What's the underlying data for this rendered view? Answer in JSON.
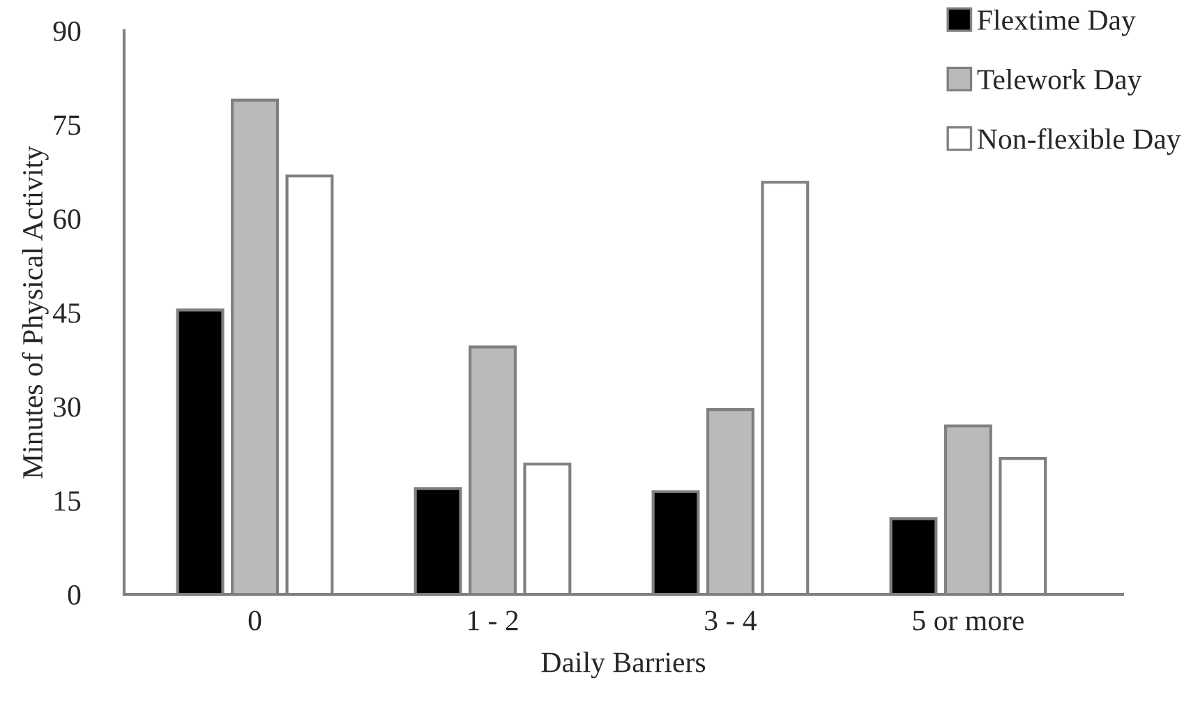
{
  "chart_data": {
    "type": "bar",
    "xlabel": "Daily Barriers",
    "ylabel": "Minutes of Physical Activity",
    "categories": [
      "0",
      "1 - 2",
      "3 - 4",
      "5 or more"
    ],
    "series": [
      {
        "name": "Flextime Day",
        "color": "#000000",
        "values": [
          45.4,
          16.9,
          16.4,
          12.1
        ]
      },
      {
        "name": "Telework Day",
        "color": "#bababa",
        "values": [
          78.9,
          39.5,
          29.5,
          26.9
        ]
      },
      {
        "name": "Non-flexible Day",
        "color": "#ffffff",
        "values": [
          66.8,
          20.8,
          65.8,
          21.7
        ]
      }
    ],
    "ylim": [
      0,
      90
    ],
    "yticks": [
      0,
      15,
      30,
      45,
      60,
      75,
      90
    ],
    "grid": false,
    "legend": "top right"
  }
}
